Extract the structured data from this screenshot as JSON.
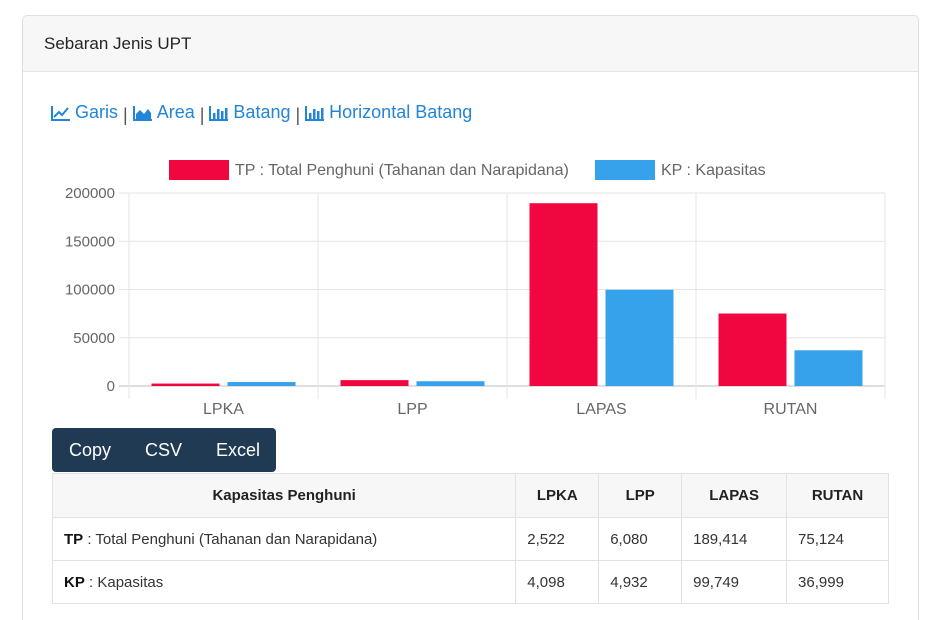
{
  "header": {
    "title": "Sebaran Jenis UPT"
  },
  "chart_links": [
    {
      "label": "Garis",
      "icon": "line-chart-icon"
    },
    {
      "label": "Area",
      "icon": "area-chart-icon"
    },
    {
      "label": "Batang",
      "icon": "bar-chart-icon"
    },
    {
      "label": "Horizontal Batang",
      "icon": "bar-chart-icon"
    }
  ],
  "chart_data": {
    "type": "bar",
    "categories": [
      "LPKA",
      "LPP",
      "LAPAS",
      "RUTAN"
    ],
    "series": [
      {
        "name": "TP : Total Penghuni (Tahanan dan Narapidana)",
        "values": [
          2522,
          6080,
          189414,
          75124
        ],
        "color": "#f0073f"
      },
      {
        "name": "KP : Kapasitas",
        "values": [
          4098,
          4932,
          99749,
          36999
        ],
        "color": "#36a2eb"
      }
    ],
    "ylim": [
      0,
      200000
    ],
    "yticks": [
      "0",
      "50000",
      "100000",
      "150000",
      "200000"
    ],
    "legend": "top",
    "grid": true
  },
  "export_buttons": {
    "copy": "Copy",
    "csv": "CSV",
    "excel": "Excel"
  },
  "table": {
    "headers": [
      "Kapasitas Penghuni",
      "LPKA",
      "LPP",
      "LAPAS",
      "RUTAN"
    ],
    "rows": [
      {
        "abbr": "TP",
        "label": " : Total Penghuni (Tahanan dan Narapidana)",
        "values": [
          "2,522",
          "6,080",
          "189,414",
          "75,124"
        ]
      },
      {
        "abbr": "KP",
        "label": " : Kapasitas",
        "values": [
          "4,098",
          "4,932",
          "99,749",
          "36,999"
        ]
      }
    ]
  }
}
